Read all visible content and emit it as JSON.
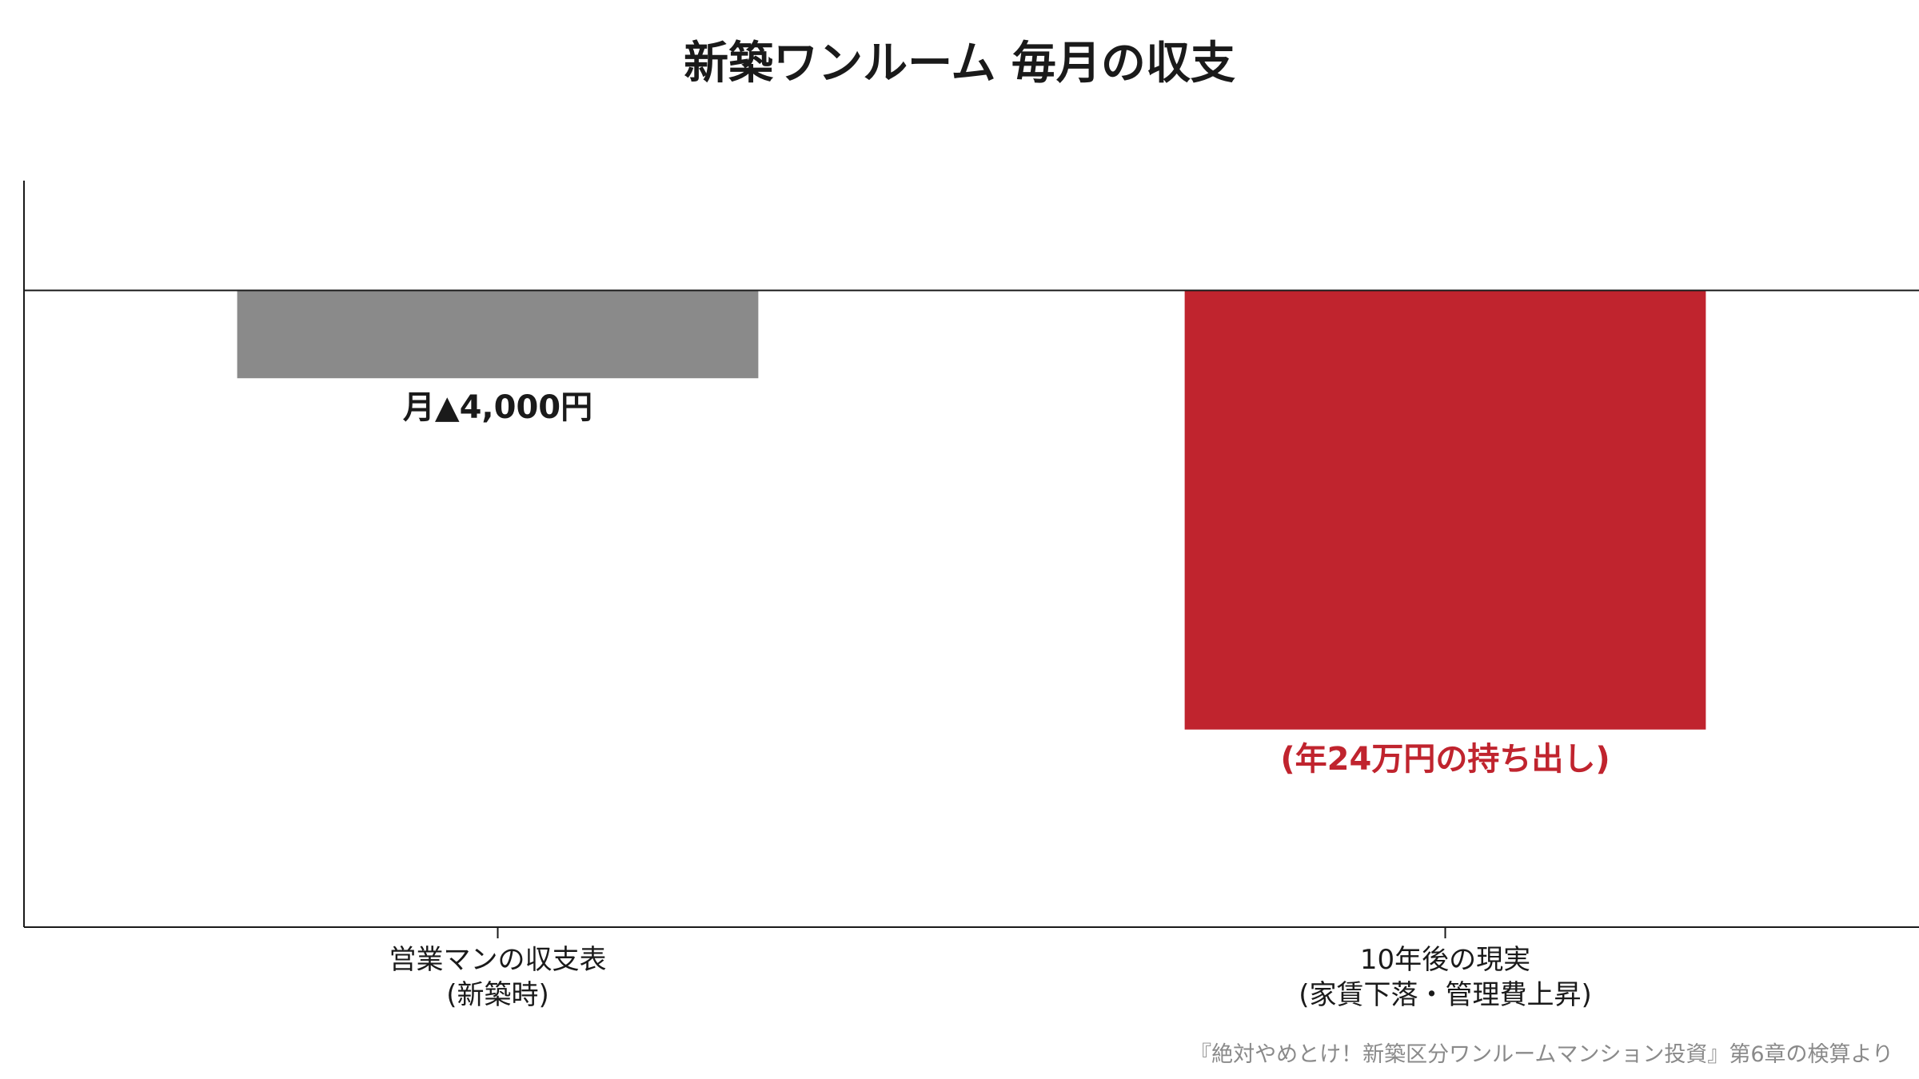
{
  "chart_data": {
    "type": "bar",
    "title": "新築ワンルーム 毎月の収支",
    "categories": [
      [
        "営業マンの収支表",
        "(新築時)"
      ],
      [
        "10年後の現実",
        "(家賃下落・管理費上昇)"
      ]
    ],
    "values": [
      -4000,
      -20000
    ],
    "value_labels": [
      "月▲4,000円",
      "(年24万円の持ち出し)"
    ],
    "colors": [
      "#8a8a8a",
      "#c0242e"
    ],
    "value_label_colors": [
      "#1a1a1a",
      "#c0242e"
    ],
    "ylim": [
      -29000,
      5000
    ],
    "xlabel": "",
    "ylabel": "",
    "grid": false,
    "zero_line": true,
    "axis_color": "#1a1a1a"
  },
  "source_note": "『絶対やめとけ！新築区分ワンルームマンション投資』第6章の検算より"
}
